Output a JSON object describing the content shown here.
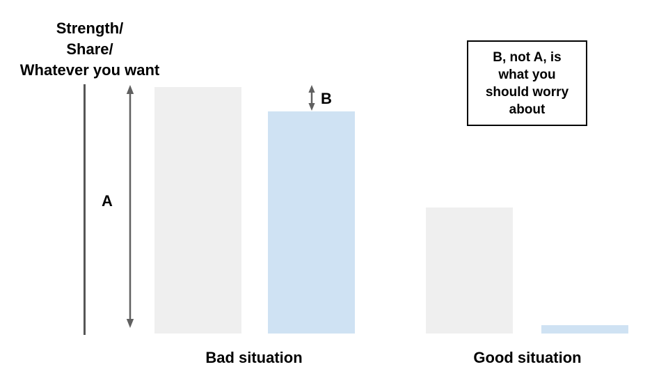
{
  "display": {
    "axis_title_lines": "Strength/\nShare/\nWhatever you want",
    "callout_lines": "B, not A, is\nwhat you\nshould worry\nabout"
  },
  "colors": {
    "bar_gray": "#efefef",
    "bar_blue": "#cfe2f3",
    "line_gray": "#606060",
    "axis_gray": "#565656",
    "text": "#000000",
    "callout_border": "#000000",
    "background": "#ffffff"
  },
  "chart_data": {
    "type": "bar",
    "title": "Strength/ Share/ Whatever you want",
    "xlabel": "",
    "ylabel": "Strength/ Share/ Whatever you want",
    "categories": [
      "Bad situation",
      "Good situation"
    ],
    "series": [
      {
        "name": "gray bar",
        "color": "#efefef",
        "values": [
          100,
          51
        ]
      },
      {
        "name": "blue bar",
        "color": "#cfe2f3",
        "values": [
          90,
          3.4
        ]
      }
    ],
    "ylim": [
      0,
      100
    ],
    "grid": false,
    "legend": "none",
    "annotations": [
      "A",
      "B",
      "B, not A, is what you should worry about"
    ]
  }
}
